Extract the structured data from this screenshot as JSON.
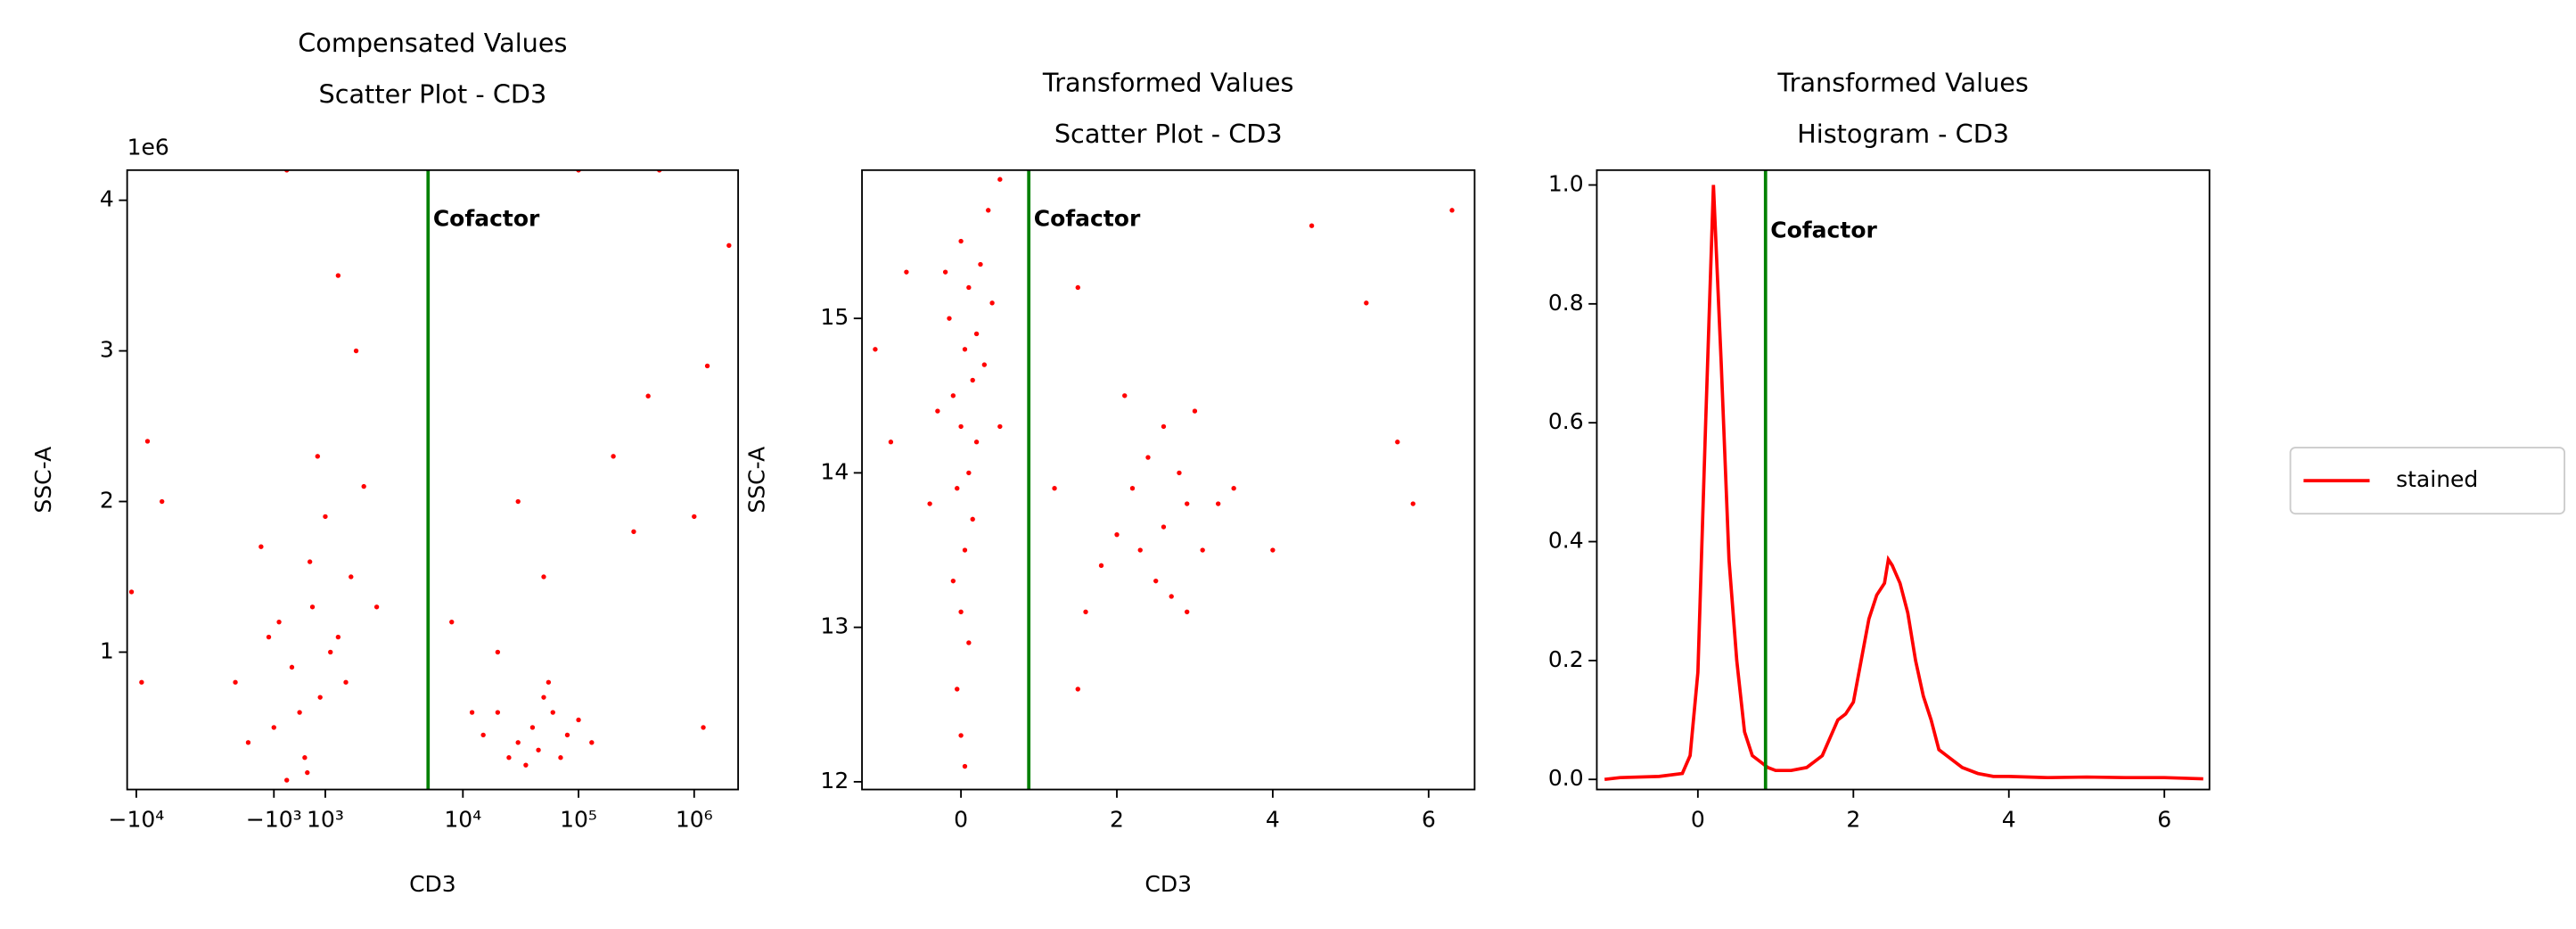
{
  "chart_data": [
    {
      "type": "scatter",
      "title": [
        "Compensated Values",
        "Scatter Plot - CD3"
      ],
      "xlabel": "CD3",
      "ylabel": "SSC-A",
      "xscale": "symlog",
      "linthresh": 5000,
      "xlim": [
        -12000,
        2400000
      ],
      "ylim": [
        88000,
        4200000
      ],
      "xticks": [
        {
          "value": -10000,
          "label": "−10⁴"
        },
        {
          "value": -1000,
          "label": "−10³"
        },
        {
          "value": 1000,
          "label": "10³"
        },
        {
          "value": 10000,
          "label": "10⁴"
        },
        {
          "value": 100000,
          "label": "10⁵"
        },
        {
          "value": 1000000,
          "label": "10⁶"
        }
      ],
      "yticks": [
        {
          "value": 1000000,
          "label": "1"
        },
        {
          "value": 2000000,
          "label": "2"
        },
        {
          "value": 3000000,
          "label": "3"
        },
        {
          "value": 4000000,
          "label": "4"
        }
      ],
      "y_offset_label": "1e6",
      "color": "#ff0000",
      "vline": 5000,
      "vline_color": "#008000",
      "annotation": "Cofactor",
      "x": [
        -500,
        200,
        -1000,
        800,
        -300,
        1500,
        500,
        2000,
        -1500,
        1000,
        2500,
        0,
        -2000,
        1200,
        3000,
        -800,
        300,
        1800,
        -2500,
        700,
        2200,
        1500,
        -1200,
        400,
        40000,
        30000,
        60000,
        25000,
        80000,
        50000,
        35000,
        45000,
        100000,
        20000,
        70000,
        55000,
        15000,
        130000,
        30000,
        50000,
        200000,
        1000000,
        1200000,
        2000000,
        1300000,
        400000,
        8000,
        -8000,
        -11000,
        -9000,
        12000,
        20000,
        300000,
        -6000,
        100000,
        -500,
        500000
      ],
      "values": [
        150000,
        300000,
        500000,
        700000,
        900000,
        1100000,
        1300000,
        1500000,
        1700000,
        1900000,
        2100000,
        600000,
        400000,
        1000000,
        1300000,
        1200000,
        200000,
        800000,
        800000,
        2300000,
        3000000,
        3500000,
        1100000,
        1600000,
        500000,
        400000,
        600000,
        300000,
        450000,
        700000,
        250000,
        350000,
        550000,
        600000,
        300000,
        800000,
        450000,
        400000,
        2000000,
        1500000,
        2300000,
        1900000,
        500000,
        3700000,
        2900000,
        2700000,
        1200000,
        2400000,
        1400000,
        800000,
        600000,
        1000000,
        1800000,
        2000000,
        4200000,
        4200000,
        4200000
      ]
    },
    {
      "type": "scatter",
      "title": [
        "Transformed Values",
        "Scatter Plot - CD3"
      ],
      "xlabel": "CD3",
      "ylabel": "SSC-A",
      "xlim": [
        -1.27,
        6.59
      ],
      "ylim": [
        11.95,
        15.96
      ],
      "xticks": [
        0,
        2,
        4,
        6
      ],
      "yticks": [
        12,
        13,
        14,
        15
      ],
      "color": "#ff0000",
      "vline": 0.87,
      "vline_color": "#008000",
      "annotation": "Cofactor",
      "x": [
        0.05,
        0.0,
        -0.05,
        0.1,
        0.0,
        -0.1,
        0.05,
        0.15,
        -0.05,
        0.1,
        0.2,
        0.0,
        -0.1,
        0.15,
        0.3,
        0.05,
        0.2,
        -0.15,
        0.4,
        0.1,
        0.25,
        0.0,
        0.35,
        0.5,
        -0.3,
        -0.4,
        0.5,
        -0.2,
        2.6,
        2.3,
        2.9,
        2.5,
        2.8,
        2.2,
        3.1,
        2.0,
        2.7,
        3.3,
        2.4,
        1.8,
        3.5,
        2.6,
        2.9,
        1.6,
        3.0,
        2.1,
        -0.9,
        -0.7,
        -1.1,
        1.5,
        4.5,
        5.2,
        5.8,
        6.3,
        1.2,
        4.0,
        5.6,
        1.5
      ],
      "values": [
        12.1,
        12.3,
        12.6,
        12.9,
        13.1,
        13.3,
        13.5,
        13.7,
        13.9,
        14.0,
        14.2,
        14.3,
        14.5,
        14.6,
        14.7,
        14.8,
        14.9,
        15.0,
        15.1,
        15.2,
        15.35,
        15.5,
        15.7,
        15.9,
        14.4,
        13.8,
        14.3,
        15.3,
        13.65,
        13.5,
        13.8,
        13.3,
        14.0,
        13.9,
        13.5,
        13.6,
        13.2,
        13.8,
        14.1,
        13.4,
        13.9,
        14.3,
        13.1,
        13.1,
        14.4,
        14.5,
        14.2,
        15.3,
        14.8,
        15.2,
        15.6,
        15.1,
        13.8,
        15.7,
        13.9,
        13.5,
        14.2,
        12.6
      ]
    },
    {
      "type": "line",
      "title": [
        "Transformed Values",
        "Histogram - CD3"
      ],
      "xlim": [
        -1.3,
        6.58
      ],
      "ylim": [
        -0.017,
        1.025
      ],
      "xticks": [
        0,
        2,
        4,
        6
      ],
      "yticks": [
        {
          "value": 0,
          "label": "0.0"
        },
        {
          "value": 0.2,
          "label": "0.2"
        },
        {
          "value": 0.4,
          "label": "0.4"
        },
        {
          "value": 0.6,
          "label": "0.6"
        },
        {
          "value": 0.8,
          "label": "0.8"
        },
        {
          "value": 1,
          "label": "1.0"
        }
      ],
      "vline": 0.87,
      "vline_color": "#008000",
      "annotation": "Cofactor",
      "legend": "right",
      "x": [
        -1.2,
        -1,
        -0.5,
        -0.2,
        -0.1,
        0,
        0.1,
        0.2,
        0.3,
        0.4,
        0.5,
        0.6,
        0.7,
        0.8,
        0.9,
        1.0,
        1.2,
        1.4,
        1.6,
        1.8,
        1.9,
        2.0,
        2.1,
        2.2,
        2.3,
        2.4,
        2.45,
        2.5,
        2.6,
        2.7,
        2.8,
        2.9,
        3.0,
        3.1,
        3.2,
        3.4,
        3.6,
        3.8,
        4.0,
        4.5,
        5,
        5.5,
        6,
        6.5
      ],
      "series": [
        {
          "name": "stained",
          "color": "#ff0000",
          "values": [
            0.0,
            0.003,
            0.005,
            0.01,
            0.04,
            0.18,
            0.6,
            1.0,
            0.7,
            0.37,
            0.2,
            0.08,
            0.04,
            0.03,
            0.02,
            0.015,
            0.015,
            0.02,
            0.04,
            0.1,
            0.11,
            0.13,
            0.2,
            0.27,
            0.31,
            0.33,
            0.37,
            0.36,
            0.33,
            0.28,
            0.2,
            0.14,
            0.1,
            0.05,
            0.04,
            0.02,
            0.01,
            0.005,
            0.005,
            0.003,
            0.004,
            0.003,
            0.003,
            0.001
          ]
        }
      ]
    }
  ]
}
